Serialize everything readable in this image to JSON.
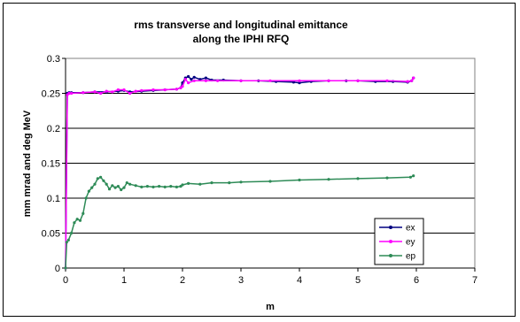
{
  "chart_data": {
    "type": "line",
    "title_lines": [
      "rms transverse and longitudinal emittance",
      "along the IPHI RFQ"
    ],
    "xlabel": "m",
    "ylabel": "mm mrad and deg MeV",
    "xlim": [
      0,
      7
    ],
    "ylim": [
      0,
      0.3
    ],
    "x_ticks": [
      "0",
      "1",
      "2",
      "3",
      "4",
      "5",
      "6",
      "7"
    ],
    "y_ticks": [
      "0",
      "0.05",
      "0.1",
      "0.15",
      "0.2",
      "0.25",
      "0.3"
    ],
    "grid": "horizontal",
    "legend_position": "bottom-right",
    "series": [
      {
        "name": "ex",
        "color": "#000080",
        "x": [
          0.0,
          0.03,
          0.06,
          0.1,
          0.3,
          0.5,
          0.7,
          0.9,
          1.0,
          1.1,
          1.3,
          1.5,
          1.7,
          1.9,
          1.97,
          2.0,
          2.05,
          2.1,
          2.15,
          2.2,
          2.3,
          2.4,
          2.5,
          2.7,
          3.0,
          3.3,
          3.6,
          3.9,
          4.0,
          4.2,
          4.5,
          4.8,
          5.0,
          5.3,
          5.6,
          5.85,
          5.92,
          5.95
        ],
        "y": [
          0.0,
          0.25,
          0.251,
          0.251,
          0.251,
          0.252,
          0.252,
          0.253,
          0.254,
          0.252,
          0.253,
          0.254,
          0.255,
          0.256,
          0.258,
          0.265,
          0.272,
          0.274,
          0.27,
          0.273,
          0.27,
          0.272,
          0.269,
          0.269,
          0.268,
          0.268,
          0.267,
          0.266,
          0.265,
          0.267,
          0.268,
          0.268,
          0.268,
          0.267,
          0.267,
          0.266,
          0.268,
          0.272
        ]
      },
      {
        "name": "ey",
        "color": "#ff00ff",
        "x": [
          0.0,
          0.03,
          0.06,
          0.1,
          0.3,
          0.5,
          0.6,
          0.7,
          0.8,
          0.9,
          1.0,
          1.1,
          1.2,
          1.3,
          1.5,
          1.7,
          1.9,
          1.97,
          2.0,
          2.05,
          2.1,
          2.2,
          2.4,
          2.6,
          3.0,
          3.5,
          4.0,
          4.5,
          5.0,
          5.5,
          5.85,
          5.92,
          5.95
        ],
        "y": [
          0.0,
          0.248,
          0.25,
          0.25,
          0.251,
          0.252,
          0.25,
          0.253,
          0.252,
          0.255,
          0.255,
          0.25,
          0.253,
          0.254,
          0.255,
          0.255,
          0.256,
          0.258,
          0.26,
          0.27,
          0.265,
          0.268,
          0.268,
          0.268,
          0.268,
          0.268,
          0.268,
          0.268,
          0.268,
          0.268,
          0.267,
          0.268,
          0.272
        ]
      },
      {
        "name": "ep",
        "color": "#2e8b57",
        "x": [
          0.0,
          0.02,
          0.05,
          0.1,
          0.15,
          0.2,
          0.25,
          0.3,
          0.35,
          0.4,
          0.45,
          0.5,
          0.55,
          0.6,
          0.65,
          0.7,
          0.75,
          0.8,
          0.85,
          0.9,
          0.95,
          1.0,
          1.05,
          1.1,
          1.2,
          1.3,
          1.4,
          1.5,
          1.6,
          1.7,
          1.8,
          1.9,
          1.97,
          2.0,
          2.1,
          2.3,
          2.5,
          2.8,
          3.0,
          3.5,
          4.0,
          4.5,
          5.0,
          5.5,
          5.9,
          5.95
        ],
        "y": [
          0.0,
          0.037,
          0.04,
          0.05,
          0.065,
          0.07,
          0.068,
          0.078,
          0.1,
          0.11,
          0.115,
          0.12,
          0.128,
          0.13,
          0.125,
          0.12,
          0.113,
          0.118,
          0.115,
          0.117,
          0.112,
          0.115,
          0.122,
          0.12,
          0.118,
          0.116,
          0.117,
          0.116,
          0.117,
          0.116,
          0.117,
          0.116,
          0.117,
          0.119,
          0.121,
          0.12,
          0.122,
          0.122,
          0.123,
          0.124,
          0.126,
          0.127,
          0.128,
          0.129,
          0.13,
          0.132
        ]
      }
    ]
  }
}
